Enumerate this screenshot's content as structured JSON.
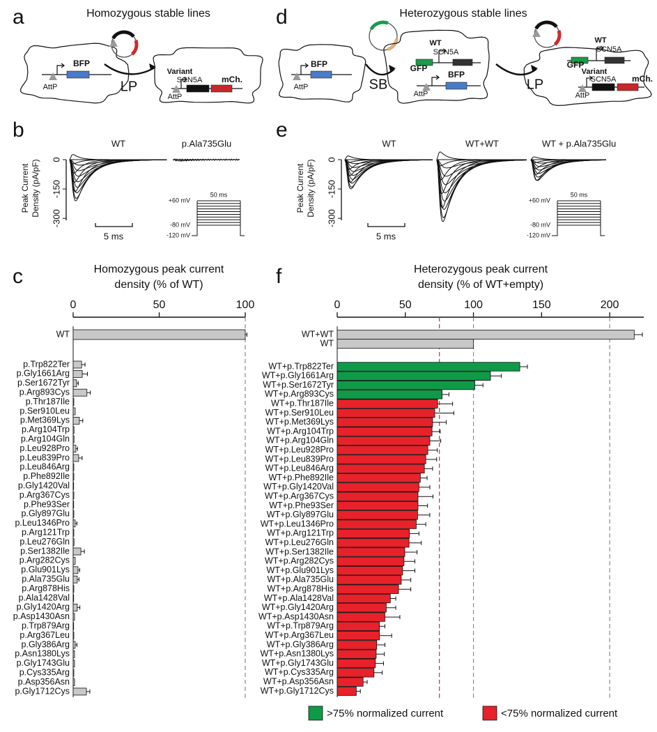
{
  "figure_labels": {
    "a": "a",
    "b": "b",
    "c": "c",
    "d": "d",
    "e": "e",
    "f": "f"
  },
  "diagram_a": {
    "title": "Homozygous stable lines",
    "labels": [
      "BFP",
      "AttP",
      "LP",
      "Variant",
      "SCN5A",
      "mCh.",
      "AttP"
    ]
  },
  "diagram_d": {
    "title": "Heterozygous stable lines",
    "labels": [
      "BFP",
      "AttP",
      "SB",
      "WT",
      "SCN5A",
      "GFP",
      "BFP",
      "AttP",
      "LP",
      "WT",
      "SCN5A",
      "GFP",
      "Variant",
      "SCN5A",
      "mCh.",
      "AttP"
    ]
  },
  "traces_b": {
    "ylabel": [
      "Peak Current",
      "Density (pA/pF)"
    ],
    "ylim": [
      -310,
      0
    ],
    "yticks": [
      0,
      -150,
      -300
    ],
    "titles": [
      "WT",
      "p.Ala735Glu"
    ],
    "scale_bar": "5 ms",
    "protocol": {
      "duration": "50 ms",
      "levels": [
        "+60 mV",
        "-80 mV",
        "-120 mV"
      ]
    }
  },
  "traces_e": {
    "ylabel": [
      "Peak Current",
      "Density (pA/pF)"
    ],
    "ylim": [
      -310,
      0
    ],
    "yticks": [
      0,
      -150,
      -300
    ],
    "titles": [
      "WT",
      "WT+WT",
      "WT + p.Ala735Glu"
    ],
    "scale_bar": "5 ms",
    "protocol": {
      "duration": "50 ms",
      "levels": [
        "+60 mV",
        "-80 mV",
        "-120 mV"
      ]
    }
  },
  "chart_data": [
    {
      "type": "bar",
      "orientation": "horizontal",
      "title": [
        "Homozygous peak current",
        "density (% of WT)"
      ],
      "control": {
        "categories": [
          "WT"
        ],
        "values": [
          100
        ],
        "errors": [
          1
        ]
      },
      "categories": [
        "p.Trp822Ter",
        "p.Gly1661Arg",
        "p.Ser1672Tyr",
        "p.Arg893Cys",
        "p.Thr187Ile",
        "p.Ser910Leu",
        "p.Met369Lys",
        "p.Arg104Trp",
        "p.Arg104Gln",
        "p.Leu928Pro",
        "p.Leu839Pro",
        "p.Leu846Arg",
        "p.Phe892Ile",
        "p.Gly1420Val",
        "p.Arg367Cys",
        "p.Phe93Ser",
        "p.Gly897Glu",
        "p.Leu1346Pro",
        "p.Arg121Trp",
        "p.Leu276Gln",
        "p.Ser1382Ile",
        "p.Arg282Cys",
        "p.Glu901Lys",
        "p.Ala735Glu",
        "p.Arg878His",
        "p.Ala1428Val",
        "p.Gly1420Arg",
        "p.Asp1430Asn",
        "p.Trp879Arg",
        "p.Arg367Leu",
        "p.Gly386Arg",
        "p.Asn1380Lys",
        "p.Gly1743Glu",
        "p.Cys335Arg",
        "p.Asp356Asn",
        "p.Gly1712Cys"
      ],
      "values": [
        4.9,
        5.3,
        2,
        8,
        0.4,
        1.2,
        3.6,
        0.5,
        0.5,
        1.6,
        3.2,
        0.4,
        0.4,
        0.3,
        0.4,
        0.3,
        0.4,
        1.2,
        0.4,
        0.5,
        4.5,
        1.2,
        2.8,
        2.4,
        0.4,
        0.3,
        2.4,
        0.8,
        0.3,
        0.4,
        1.2,
        0.8,
        0.8,
        0.4,
        0.8,
        7.7
      ],
      "errors": [
        2,
        3,
        1,
        2,
        null,
        null,
        2,
        null,
        null,
        1,
        2,
        null,
        null,
        null,
        null,
        null,
        null,
        1,
        null,
        null,
        2,
        null,
        1,
        1,
        null,
        null,
        1.5,
        null,
        null,
        null,
        1,
        null,
        null,
        null,
        null,
        2
      ],
      "color": "#c8c8c8",
      "xlim": [
        0,
        100
      ],
      "xticks": [
        0,
        50,
        100
      ],
      "reference_lines": [
        {
          "value": 100,
          "color": "#8a8a8a"
        }
      ]
    },
    {
      "type": "bar",
      "orientation": "horizontal",
      "title": [
        "Heterozygous peak current",
        "density (% of WT+empty)"
      ],
      "control": {
        "categories": [
          "WT+WT",
          "WT"
        ],
        "values": [
          218,
          100
        ],
        "errors": [
          6,
          null
        ]
      },
      "categories": [
        "WT+p.Trp822Ter",
        "WT+p.Gly1661Arg",
        "WT+p.Ser1672Tyr",
        "WT+p.Arg893Cys",
        "WT+p.Thr187Ile",
        "WT+p.Ser910Leu",
        "WT+p.Met369Lys",
        "WT+p.Arg104Trp",
        "WT+p.Arg104Gln",
        "WT+p.Leu928Pro",
        "WT+p.Leu839Pro",
        "WT+p.Leu846Arg",
        "WT+p.Phe892Ile",
        "WT+p.Gly1420Val",
        "WT+p.Arg367Cys",
        "WT+p.Phe93Ser",
        "WT+p.Gly897Glu",
        "WT+p.Leu1346Pro",
        "WT+p.Arg121Trp",
        "WT+p.Leu276Gln",
        "WT+p.Ser1382Ile",
        "WT+p.Arg282Cys",
        "WT+p.Glu901Lys",
        "WT+p.Ala735Glu",
        "WT+p.Arg878His",
        "WT+p.Ala1428Val",
        "WT+p.Gly1420Arg",
        "WT+p.Asp1430Asn",
        "WT+p.Trp879Arg",
        "WT+p.Arg367Leu",
        "WT+p.Gly386Arg",
        "WT+p.Asn1380Lys",
        "WT+p.Gly1743Glu",
        "WT+p.Cys335Arg",
        "WT+p.Asp356Asn",
        "WT+p.Gly1712Cys"
      ],
      "values": [
        134,
        112.5,
        101,
        77,
        73.7,
        71.6,
        70,
        69.6,
        68,
        66.5,
        65,
        64,
        61,
        60,
        59.3,
        59.3,
        59,
        58,
        53,
        52.7,
        49.6,
        49,
        48,
        47,
        45,
        39,
        36,
        35,
        31,
        31,
        29,
        28.6,
        28,
        27,
        19,
        14
      ],
      "errors": [
        5.6,
        8,
        6,
        5,
        11,
        14,
        10,
        6,
        8,
        7,
        8,
        6,
        5,
        8,
        11,
        7,
        9,
        7,
        7,
        9,
        9,
        8,
        9,
        7,
        9,
        4,
        7,
        11,
        4,
        9,
        6,
        6,
        6,
        6,
        3,
        3
      ],
      "colors": [
        "#0f9a48",
        "#0f9a48",
        "#0f9a48",
        "#0f9a48",
        "#e8222a",
        "#e8222a",
        "#e8222a",
        "#e8222a",
        "#e8222a",
        "#e8222a",
        "#e8222a",
        "#e8222a",
        "#e8222a",
        "#e8222a",
        "#e8222a",
        "#e8222a",
        "#e8222a",
        "#e8222a",
        "#e8222a",
        "#e8222a",
        "#e8222a",
        "#e8222a",
        "#e8222a",
        "#e8222a",
        "#e8222a",
        "#e8222a",
        "#e8222a",
        "#e8222a",
        "#e8222a",
        "#e8222a",
        "#e8222a",
        "#e8222a",
        "#e8222a",
        "#e8222a",
        "#e8222a",
        "#e8222a"
      ],
      "control_color": "#c8c8c8",
      "xlim": [
        0,
        225
      ],
      "xticks": [
        0,
        50,
        100,
        150,
        200
      ],
      "reference_lines": [
        {
          "value": 75,
          "color": "#e8222a"
        },
        {
          "value": 100,
          "color": "#8a8a8a"
        },
        {
          "value": 200,
          "color": "#8a8a8a"
        }
      ],
      "legend": [
        {
          "label": ">75% normalized current",
          "color": "#0f9a48"
        },
        {
          "label": "<75% normalized current",
          "color": "#e8222a"
        }
      ]
    }
  ]
}
